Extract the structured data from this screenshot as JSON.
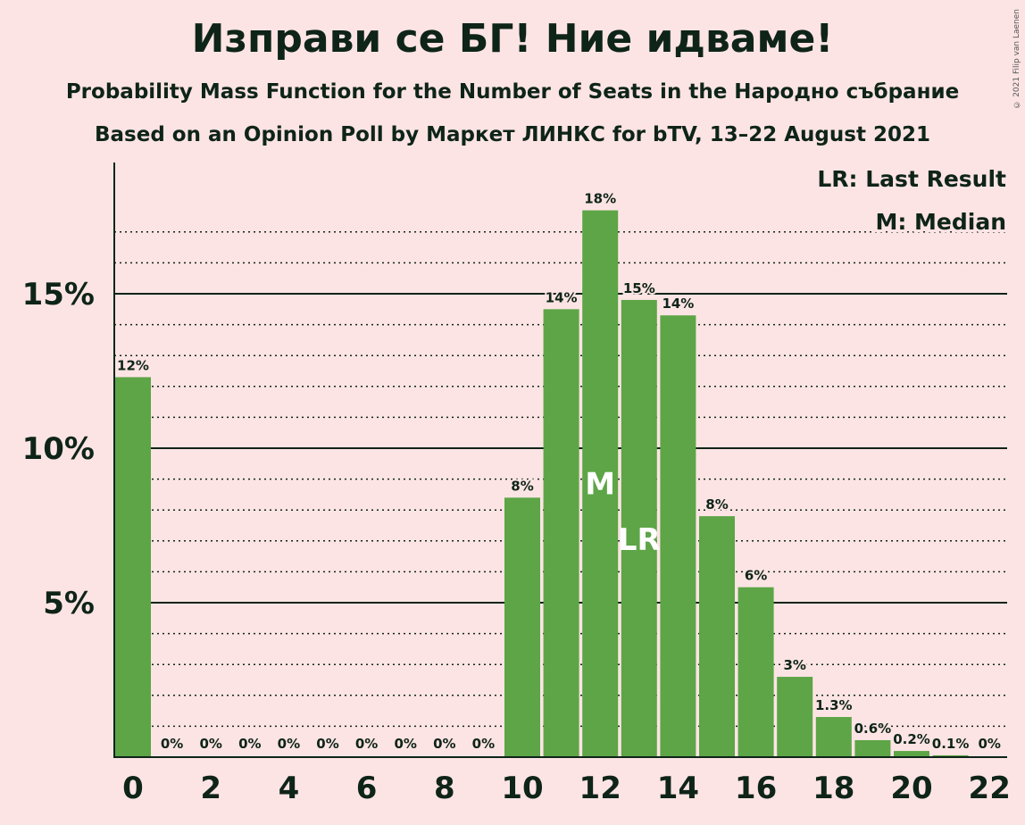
{
  "header": {
    "title": "Изправи се БГ! Ние идваме!",
    "subtitle_1": "Probability Mass Function for the Number of Seats in the Народно събрание",
    "subtitle_2": "Based on an Opinion Poll by Маркет ЛИНКС for bTV, 13–22 August 2021"
  },
  "copyright": "© 2021 Filip van Laenen",
  "legend": {
    "last_result": "LR: Last Result",
    "median": "M: Median"
  },
  "colors": {
    "background": "#fde4e4",
    "bar": "#5da547",
    "text": "#0e2418"
  },
  "chart_data": {
    "type": "bar",
    "categories": [
      0,
      1,
      2,
      3,
      4,
      5,
      6,
      7,
      8,
      9,
      10,
      11,
      12,
      13,
      14,
      15,
      16,
      17,
      18,
      19,
      20,
      21,
      22
    ],
    "values": [
      12.3,
      0,
      0,
      0,
      0,
      0,
      0,
      0,
      0,
      0,
      8.4,
      14.5,
      17.7,
      14.8,
      14.3,
      7.8,
      5.5,
      2.6,
      1.3,
      0.55,
      0.2,
      0.06,
      0
    ],
    "labels": [
      "12%",
      "0%",
      "0%",
      "0%",
      "0%",
      "0%",
      "0%",
      "0%",
      "0%",
      "0%",
      "8%",
      "14%",
      "18%",
      "15%",
      "14%",
      "8%",
      "6%",
      "3%",
      "1.3%",
      "0.6%",
      "0.2%",
      "0.1%",
      "0%"
    ],
    "x_tick_labels": [
      "0",
      "2",
      "4",
      "6",
      "8",
      "10",
      "12",
      "14",
      "16",
      "18",
      "20",
      "22"
    ],
    "y_ticks": [
      {
        "value": 5,
        "label": "5%"
      },
      {
        "value": 10,
        "label": "10%"
      },
      {
        "value": 15,
        "label": "15%"
      }
    ],
    "ylim": [
      0,
      19
    ],
    "median_seat": 12,
    "median_marker": "M",
    "last_result_seat": 13,
    "last_result_marker": "LR",
    "legend_position": "top-right"
  }
}
